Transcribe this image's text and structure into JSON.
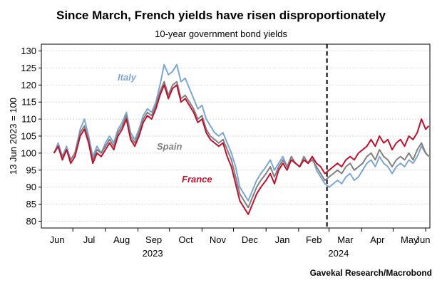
{
  "chart_data": {
    "type": "line",
    "title": "Since March, French yields have risen disproportionately",
    "subtitle": "10-year government bond yields",
    "ylabel": "13 Jun 2023 = 100",
    "source": "Gavekal Research/Macrobond",
    "ylim": [
      78,
      132
    ],
    "yticks": [
      80,
      85,
      90,
      95,
      100,
      105,
      110,
      115,
      120,
      125,
      130
    ],
    "x_domain": [
      "2023-06-01",
      "2024-06-05"
    ],
    "month_labels": [
      {
        "label": "Jun",
        "date": "2023-06-01"
      },
      {
        "label": "Jul",
        "date": "2023-07-01"
      },
      {
        "label": "Aug",
        "date": "2023-08-01"
      },
      {
        "label": "Sep",
        "date": "2023-09-01"
      },
      {
        "label": "Oct",
        "date": "2023-10-01"
      },
      {
        "label": "Nov",
        "date": "2023-11-01"
      },
      {
        "label": "Dec",
        "date": "2023-12-01"
      },
      {
        "label": "Jan",
        "date": "2024-01-01"
      },
      {
        "label": "Feb",
        "date": "2024-02-01"
      },
      {
        "label": "Mar",
        "date": "2024-03-01"
      },
      {
        "label": "Apr",
        "date": "2024-04-01"
      },
      {
        "label": "May",
        "date": "2024-05-01"
      },
      {
        "label": "Jun",
        "date": "2024-06-01"
      }
    ],
    "year_labels": [
      {
        "label": "2023",
        "date": "2023-09-15"
      },
      {
        "label": "2024",
        "date": "2024-03-10"
      }
    ],
    "vline": {
      "date": "2024-02-28",
      "style": "dashed"
    },
    "grid": true,
    "series": [
      {
        "name": "Italy",
        "color": "#7ea6d2",
        "points": [
          [
            "2023-06-13",
            100
          ],
          [
            "2023-06-17",
            103
          ],
          [
            "2023-06-21",
            99
          ],
          [
            "2023-06-25",
            102
          ],
          [
            "2023-06-29",
            98
          ],
          [
            "2023-07-03",
            100
          ],
          [
            "2023-07-08",
            107
          ],
          [
            "2023-07-12",
            110
          ],
          [
            "2023-07-16",
            105
          ],
          [
            "2023-07-20",
            99
          ],
          [
            "2023-07-24",
            102
          ],
          [
            "2023-07-28",
            100
          ],
          [
            "2023-08-01",
            103
          ],
          [
            "2023-08-05",
            105
          ],
          [
            "2023-08-09",
            103
          ],
          [
            "2023-08-13",
            107
          ],
          [
            "2023-08-17",
            109
          ],
          [
            "2023-08-21",
            112
          ],
          [
            "2023-08-25",
            106
          ],
          [
            "2023-08-29",
            104
          ],
          [
            "2023-09-02",
            107
          ],
          [
            "2023-09-06",
            111
          ],
          [
            "2023-09-10",
            113
          ],
          [
            "2023-09-14",
            112
          ],
          [
            "2023-09-18",
            115
          ],
          [
            "2023-09-22",
            120
          ],
          [
            "2023-09-26",
            126
          ],
          [
            "2023-09-30",
            123
          ],
          [
            "2023-10-04",
            124
          ],
          [
            "2023-10-08",
            126
          ],
          [
            "2023-10-12",
            121
          ],
          [
            "2023-10-16",
            122
          ],
          [
            "2023-10-20",
            119
          ],
          [
            "2023-10-24",
            116
          ],
          [
            "2023-10-28",
            113
          ],
          [
            "2023-11-01",
            114
          ],
          [
            "2023-11-05",
            110
          ],
          [
            "2023-11-09",
            108
          ],
          [
            "2023-11-13",
            106
          ],
          [
            "2023-11-17",
            105
          ],
          [
            "2023-11-21",
            106
          ],
          [
            "2023-11-25",
            103
          ],
          [
            "2023-11-29",
            100
          ],
          [
            "2023-12-03",
            96
          ],
          [
            "2023-12-07",
            90
          ],
          [
            "2023-12-11",
            88
          ],
          [
            "2023-12-15",
            86
          ],
          [
            "2023-12-19",
            89
          ],
          [
            "2023-12-23",
            92
          ],
          [
            "2023-12-27",
            94
          ],
          [
            "2024-01-01",
            96
          ],
          [
            "2024-01-05",
            98
          ],
          [
            "2024-01-09",
            95
          ],
          [
            "2024-01-13",
            97
          ],
          [
            "2024-01-17",
            99
          ],
          [
            "2024-01-21",
            96
          ],
          [
            "2024-01-25",
            98
          ],
          [
            "2024-01-29",
            97
          ],
          [
            "2024-02-02",
            96
          ],
          [
            "2024-02-06",
            98
          ],
          [
            "2024-02-10",
            97
          ],
          [
            "2024-02-14",
            99
          ],
          [
            "2024-02-18",
            95
          ],
          [
            "2024-02-22",
            93
          ],
          [
            "2024-02-26",
            91
          ],
          [
            "2024-03-01",
            90
          ],
          [
            "2024-03-05",
            91
          ],
          [
            "2024-03-09",
            92
          ],
          [
            "2024-03-13",
            91
          ],
          [
            "2024-03-17",
            93
          ],
          [
            "2024-03-21",
            94
          ],
          [
            "2024-03-25",
            92
          ],
          [
            "2024-03-29",
            93
          ],
          [
            "2024-04-02",
            95
          ],
          [
            "2024-04-06",
            97
          ],
          [
            "2024-04-10",
            98
          ],
          [
            "2024-04-14",
            96
          ],
          [
            "2024-04-18",
            99
          ],
          [
            "2024-04-22",
            97
          ],
          [
            "2024-04-26",
            96
          ],
          [
            "2024-04-30",
            94
          ],
          [
            "2024-05-04",
            96
          ],
          [
            "2024-05-08",
            97
          ],
          [
            "2024-05-12",
            96
          ],
          [
            "2024-05-16",
            98
          ],
          [
            "2024-05-20",
            97
          ],
          [
            "2024-05-24",
            99
          ],
          [
            "2024-05-28",
            102
          ],
          [
            "2024-06-01",
            100
          ],
          [
            "2024-06-04",
            99
          ]
        ]
      },
      {
        "name": "Spain",
        "color": "#808080",
        "points": [
          [
            "2023-06-13",
            100
          ],
          [
            "2023-06-17",
            102
          ],
          [
            "2023-06-21",
            99
          ],
          [
            "2023-06-25",
            101
          ],
          [
            "2023-06-29",
            98
          ],
          [
            "2023-07-03",
            100
          ],
          [
            "2023-07-08",
            106
          ],
          [
            "2023-07-12",
            108
          ],
          [
            "2023-07-16",
            104
          ],
          [
            "2023-07-20",
            98
          ],
          [
            "2023-07-24",
            101
          ],
          [
            "2023-07-28",
            100
          ],
          [
            "2023-08-01",
            102
          ],
          [
            "2023-08-05",
            104
          ],
          [
            "2023-08-09",
            102
          ],
          [
            "2023-08-13",
            106
          ],
          [
            "2023-08-17",
            108
          ],
          [
            "2023-08-21",
            111
          ],
          [
            "2023-08-25",
            105
          ],
          [
            "2023-08-29",
            103
          ],
          [
            "2023-09-02",
            106
          ],
          [
            "2023-09-06",
            110
          ],
          [
            "2023-09-10",
            112
          ],
          [
            "2023-09-14",
            111
          ],
          [
            "2023-09-18",
            114
          ],
          [
            "2023-09-22",
            118
          ],
          [
            "2023-09-26",
            121
          ],
          [
            "2023-09-30",
            117
          ],
          [
            "2023-10-04",
            120
          ],
          [
            "2023-10-08",
            121
          ],
          [
            "2023-10-12",
            116
          ],
          [
            "2023-10-16",
            117
          ],
          [
            "2023-10-20",
            115
          ],
          [
            "2023-10-24",
            113
          ],
          [
            "2023-10-28",
            110
          ],
          [
            "2023-11-01",
            111
          ],
          [
            "2023-11-05",
            107
          ],
          [
            "2023-11-09",
            105
          ],
          [
            "2023-11-13",
            104
          ],
          [
            "2023-11-17",
            103
          ],
          [
            "2023-11-21",
            104
          ],
          [
            "2023-11-25",
            101
          ],
          [
            "2023-11-29",
            98
          ],
          [
            "2023-12-03",
            93
          ],
          [
            "2023-12-07",
            88
          ],
          [
            "2023-12-11",
            86
          ],
          [
            "2023-12-15",
            84
          ],
          [
            "2023-12-19",
            87
          ],
          [
            "2023-12-23",
            90
          ],
          [
            "2023-12-27",
            92
          ],
          [
            "2024-01-01",
            94
          ],
          [
            "2024-01-05",
            96
          ],
          [
            "2024-01-09",
            93
          ],
          [
            "2024-01-13",
            96
          ],
          [
            "2024-01-17",
            98
          ],
          [
            "2024-01-21",
            96
          ],
          [
            "2024-01-25",
            99
          ],
          [
            "2024-01-29",
            97
          ],
          [
            "2024-02-02",
            96
          ],
          [
            "2024-02-06",
            99
          ],
          [
            "2024-02-10",
            97
          ],
          [
            "2024-02-14",
            98
          ],
          [
            "2024-02-18",
            96
          ],
          [
            "2024-02-22",
            94
          ],
          [
            "2024-02-26",
            92
          ],
          [
            "2024-03-01",
            93
          ],
          [
            "2024-03-05",
            94
          ],
          [
            "2024-03-09",
            95
          ],
          [
            "2024-03-13",
            94
          ],
          [
            "2024-03-17",
            96
          ],
          [
            "2024-03-21",
            97
          ],
          [
            "2024-03-25",
            95
          ],
          [
            "2024-03-29",
            96
          ],
          [
            "2024-04-02",
            97
          ],
          [
            "2024-04-06",
            99
          ],
          [
            "2024-04-10",
            100
          ],
          [
            "2024-04-14",
            98
          ],
          [
            "2024-04-18",
            101
          ],
          [
            "2024-04-22",
            99
          ],
          [
            "2024-04-26",
            98
          ],
          [
            "2024-04-30",
            96
          ],
          [
            "2024-05-04",
            98
          ],
          [
            "2024-05-08",
            99
          ],
          [
            "2024-05-12",
            98
          ],
          [
            "2024-05-16",
            100
          ],
          [
            "2024-05-20",
            98
          ],
          [
            "2024-05-24",
            101
          ],
          [
            "2024-05-28",
            103
          ],
          [
            "2024-06-01",
            100
          ],
          [
            "2024-06-04",
            99
          ]
        ]
      },
      {
        "name": "France",
        "color": "#c0102f",
        "points": [
          [
            "2023-06-13",
            100
          ],
          [
            "2023-06-17",
            102
          ],
          [
            "2023-06-21",
            98
          ],
          [
            "2023-06-25",
            101
          ],
          [
            "2023-06-29",
            97
          ],
          [
            "2023-07-03",
            99
          ],
          [
            "2023-07-08",
            105
          ],
          [
            "2023-07-12",
            107
          ],
          [
            "2023-07-16",
            103
          ],
          [
            "2023-07-20",
            97
          ],
          [
            "2023-07-24",
            100
          ],
          [
            "2023-07-28",
            99
          ],
          [
            "2023-08-01",
            101
          ],
          [
            "2023-08-05",
            103
          ],
          [
            "2023-08-09",
            101
          ],
          [
            "2023-08-13",
            105
          ],
          [
            "2023-08-17",
            107
          ],
          [
            "2023-08-21",
            110
          ],
          [
            "2023-08-25",
            104
          ],
          [
            "2023-08-29",
            102
          ],
          [
            "2023-09-02",
            105
          ],
          [
            "2023-09-06",
            109
          ],
          [
            "2023-09-10",
            111
          ],
          [
            "2023-09-14",
            110
          ],
          [
            "2023-09-18",
            113
          ],
          [
            "2023-09-22",
            117
          ],
          [
            "2023-09-26",
            120
          ],
          [
            "2023-09-30",
            116
          ],
          [
            "2023-10-04",
            119
          ],
          [
            "2023-10-08",
            120
          ],
          [
            "2023-10-12",
            115
          ],
          [
            "2023-10-16",
            116
          ],
          [
            "2023-10-20",
            114
          ],
          [
            "2023-10-24",
            112
          ],
          [
            "2023-10-28",
            109
          ],
          [
            "2023-11-01",
            110
          ],
          [
            "2023-11-05",
            106
          ],
          [
            "2023-11-09",
            104
          ],
          [
            "2023-11-13",
            103
          ],
          [
            "2023-11-17",
            102
          ],
          [
            "2023-11-21",
            103
          ],
          [
            "2023-11-25",
            99
          ],
          [
            "2023-11-29",
            96
          ],
          [
            "2023-12-03",
            91
          ],
          [
            "2023-12-07",
            86
          ],
          [
            "2023-12-11",
            84
          ],
          [
            "2023-12-15",
            82
          ],
          [
            "2023-12-19",
            85
          ],
          [
            "2023-12-23",
            88
          ],
          [
            "2023-12-27",
            90
          ],
          [
            "2024-01-01",
            92
          ],
          [
            "2024-01-05",
            94
          ],
          [
            "2024-01-09",
            91
          ],
          [
            "2024-01-13",
            95
          ],
          [
            "2024-01-17",
            97
          ],
          [
            "2024-01-21",
            95
          ],
          [
            "2024-01-25",
            98
          ],
          [
            "2024-01-29",
            97
          ],
          [
            "2024-02-02",
            96
          ],
          [
            "2024-02-06",
            98
          ],
          [
            "2024-02-10",
            97
          ],
          [
            "2024-02-14",
            99
          ],
          [
            "2024-02-18",
            97
          ],
          [
            "2024-02-22",
            96
          ],
          [
            "2024-02-26",
            94
          ],
          [
            "2024-03-01",
            95
          ],
          [
            "2024-03-05",
            96
          ],
          [
            "2024-03-09",
            97
          ],
          [
            "2024-03-13",
            96
          ],
          [
            "2024-03-17",
            98
          ],
          [
            "2024-03-21",
            99
          ],
          [
            "2024-03-25",
            98
          ],
          [
            "2024-03-29",
            100
          ],
          [
            "2024-04-02",
            101
          ],
          [
            "2024-04-06",
            102
          ],
          [
            "2024-04-10",
            104
          ],
          [
            "2024-04-14",
            102
          ],
          [
            "2024-04-18",
            105
          ],
          [
            "2024-04-22",
            103
          ],
          [
            "2024-04-26",
            104
          ],
          [
            "2024-04-30",
            101
          ],
          [
            "2024-05-04",
            103
          ],
          [
            "2024-05-08",
            104
          ],
          [
            "2024-05-12",
            102
          ],
          [
            "2024-05-16",
            105
          ],
          [
            "2024-05-20",
            104
          ],
          [
            "2024-05-24",
            106
          ],
          [
            "2024-05-28",
            110
          ],
          [
            "2024-06-01",
            107
          ],
          [
            "2024-06-04",
            108
          ]
        ]
      }
    ]
  }
}
